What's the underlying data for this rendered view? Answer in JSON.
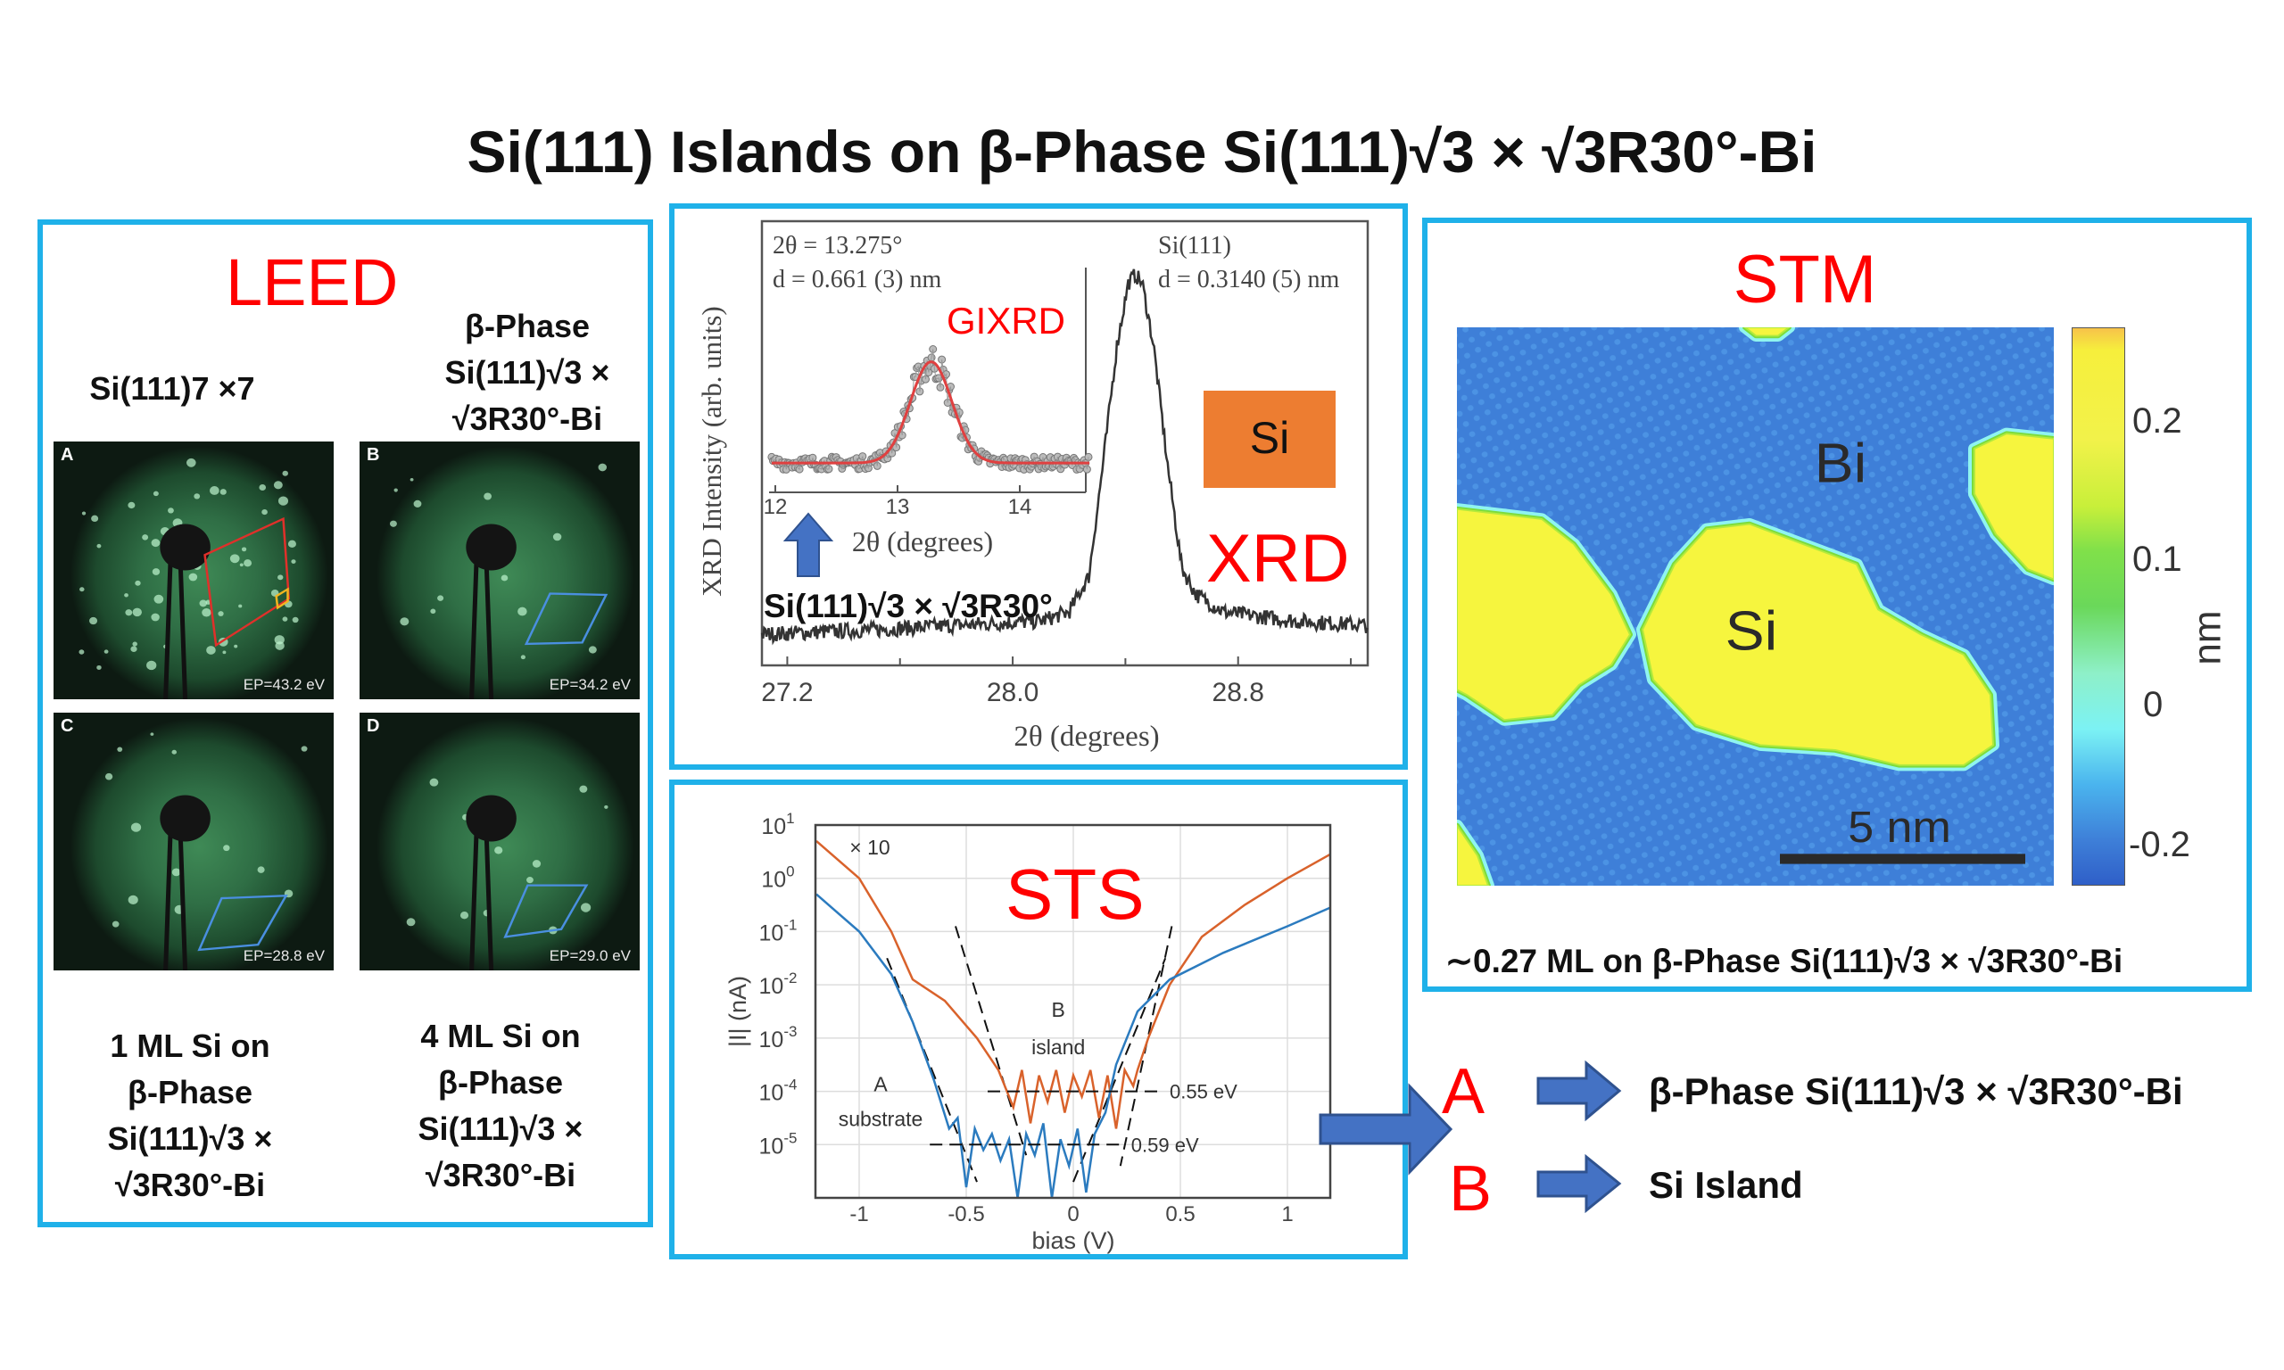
{
  "title": "Si(111) Islands on β-Phase Si(111)√3 × √3R30°-Bi",
  "colors": {
    "panel_border": "#1fb1e9",
    "accent_red": "#ff0000",
    "arrow_blue": "#4472c4",
    "si_box": "#ed7d31"
  },
  "leed": {
    "heading": "LEED",
    "label_a": "Si(111)7 ×7",
    "label_b": [
      "β-Phase",
      "Si(111)√3 ×",
      "√3R30°-Bi"
    ],
    "label_c": [
      "1 ML Si on",
      "β-Phase",
      "Si(111)√3 ×",
      "√3R30°-Bi"
    ],
    "label_d": [
      "4 ML Si on",
      "β-Phase",
      "Si(111)√3 ×",
      "√3R30°-Bi"
    ],
    "images": [
      {
        "letter": "A",
        "energy": "EP=43.2 eV"
      },
      {
        "letter": "B",
        "energy": "EP=34.2 eV"
      },
      {
        "letter": "C",
        "energy": "EP=28.8 eV"
      },
      {
        "letter": "D",
        "energy": "EP=29.0 eV"
      }
    ]
  },
  "xrd": {
    "heading": "XRD",
    "inset_heading": "GIXRD",
    "si_badge": "Si",
    "arrow_label": "Si(111)√3 × √3R30°",
    "inset_ann": [
      "2θ = 13.275°",
      "d = 0.661 (3) nm"
    ],
    "main_ann": [
      "Si(111)",
      "d = 0.3140 (5) nm"
    ]
  },
  "sts": {
    "heading": "STS"
  },
  "stm": {
    "heading": "STM",
    "label_bi": "Bi",
    "label_si": "Si",
    "scale_bar": "5 nm",
    "colorbar_unit": "nm",
    "colorbar_ticks": [
      "0.2",
      "0.1",
      "0",
      "-0.2"
    ],
    "caption": "∼0.27 ML on β-Phase Si(111)√3 × √3R30°-Bi"
  },
  "legend": {
    "a_letter": "A",
    "a_text": "β-Phase Si(111)√3 × √3R30°-Bi",
    "b_letter": "B",
    "b_text": "Si Island"
  },
  "chart_data": [
    {
      "id": "xrd-main",
      "type": "line",
      "xlabel": "2θ (degrees)",
      "ylabel": "XRD Intensity (arb. units)",
      "xlim": [
        27.11,
        29.26
      ],
      "ylim": [
        0,
        1
      ],
      "xticks": [
        "27.2",
        "28.0",
        "28.8"
      ],
      "xtick_values": [
        27.2,
        28.0,
        28.8
      ],
      "x": [
        27.11,
        27.5,
        27.8,
        28.1,
        28.2,
        28.27,
        28.32,
        28.37,
        28.41,
        28.435,
        28.46,
        28.5,
        28.55,
        28.6,
        28.65,
        28.75,
        29.0,
        29.26
      ],
      "y": [
        0.07,
        0.08,
        0.09,
        0.1,
        0.12,
        0.2,
        0.45,
        0.72,
        0.86,
        0.88,
        0.86,
        0.72,
        0.45,
        0.22,
        0.16,
        0.12,
        0.1,
        0.09
      ],
      "peak": {
        "two_theta": 28.435,
        "d_spacing_nm": "0.3140 (5)"
      }
    },
    {
      "id": "xrd-inset",
      "type": "scatter",
      "xlabel": "2θ (degrees)",
      "xlim": [
        11.95,
        14.58
      ],
      "ylim": [
        0,
        1
      ],
      "xticks": [
        "12",
        "13",
        "14"
      ],
      "xtick_values": [
        12,
        13,
        14
      ],
      "fit": {
        "type": "gaussian",
        "center": 13.275,
        "sigma": 0.17,
        "amplitude": 0.39,
        "baseline": 0.113
      },
      "d_spacing_nm": "0.661 (3)"
    },
    {
      "id": "sts",
      "type": "line",
      "xlabel": "bias (V)",
      "ylabel": "|I| (nA)",
      "yscale": "log",
      "xlim": [
        -1.2,
        1.2
      ],
      "ylim_log10": [
        -6,
        1
      ],
      "xticks": [
        "-1",
        "-0.5",
        "0",
        "0.5",
        "1"
      ],
      "xtick_values": [
        -1,
        -0.5,
        0,
        0.5,
        1
      ],
      "yticks": [
        "10^1",
        "10^0",
        "10^-1",
        "10^-2",
        "10^-3",
        "10^-4",
        "10^-5"
      ],
      "ytick_values": [
        1,
        0,
        -1,
        -2,
        -3,
        -4,
        -5
      ],
      "series": [
        {
          "name": "B island",
          "color": "#d9622b",
          "note": "× 10",
          "x": [
            -1.2,
            -1.0,
            -0.85,
            -0.75,
            -0.6,
            -0.45,
            -0.35,
            -0.28,
            -0.24,
            -0.2,
            -0.16,
            -0.12,
            -0.08,
            -0.04,
            0.0,
            0.04,
            0.08,
            0.12,
            0.16,
            0.2,
            0.24,
            0.28,
            0.3,
            0.35,
            0.4,
            0.45,
            0.6,
            0.8,
            1.0,
            1.2
          ],
          "log10_y": [
            0.7,
            0.0,
            -1.0,
            -1.9,
            -2.3,
            -3.0,
            -3.6,
            -4.3,
            -3.6,
            -4.6,
            -3.7,
            -4.2,
            -3.6,
            -4.4,
            -3.7,
            -4.1,
            -3.6,
            -4.5,
            -3.7,
            -4.7,
            -3.6,
            -3.9,
            -3.6,
            -3.0,
            -2.5,
            -2.0,
            -1.1,
            -0.5,
            0.0,
            0.45
          ]
        },
        {
          "name": "A substrate",
          "color": "#2b7bbf",
          "x": [
            -1.2,
            -1.0,
            -0.85,
            -0.75,
            -0.65,
            -0.58,
            -0.54,
            -0.5,
            -0.46,
            -0.42,
            -0.38,
            -0.34,
            -0.3,
            -0.26,
            -0.22,
            -0.18,
            -0.14,
            -0.1,
            -0.06,
            -0.02,
            0.02,
            0.06,
            0.1,
            0.15,
            0.2,
            0.3,
            0.45,
            0.7,
            1.0,
            1.2
          ],
          "log10_y": [
            -0.3,
            -1.0,
            -1.8,
            -2.7,
            -3.8,
            -4.7,
            -4.5,
            -5.8,
            -4.7,
            -5.1,
            -4.8,
            -5.3,
            -4.9,
            -6.0,
            -4.8,
            -5.2,
            -4.6,
            -6.0,
            -4.9,
            -5.4,
            -4.7,
            -5.9,
            -4.8,
            -4.4,
            -3.5,
            -2.5,
            -1.9,
            -1.4,
            -0.9,
            -0.55
          ]
        }
      ],
      "gap_lines": [
        {
          "label": "0.55 eV",
          "log10_y": -4,
          "x": [
            -0.4,
            0.4
          ]
        },
        {
          "label": "0.59 eV",
          "log10_y": -5,
          "x": [
            -0.67,
            0.22
          ]
        }
      ],
      "tangents": [
        {
          "x": [
            -0.55,
            -0.22
          ],
          "log10_y": [
            -0.9,
            -5.2
          ]
        },
        {
          "x": [
            0.46,
            0.22
          ],
          "log10_y": [
            -0.9,
            -5.4
          ]
        },
        {
          "x": [
            -0.87,
            -0.45
          ],
          "log10_y": [
            -1.5,
            -5.7
          ]
        },
        {
          "x": [
            0.0,
            0.43
          ],
          "log10_y": [
            -5.7,
            -1.5
          ]
        }
      ],
      "annotations": [
        {
          "text": "× 10",
          "x": -0.95,
          "log10_y": 0.45
        },
        {
          "text": "B",
          "x": -0.07,
          "log10_y": -2.6
        },
        {
          "text": "island",
          "x": -0.07,
          "log10_y": -3.3
        },
        {
          "text": "A",
          "x": -0.9,
          "log10_y": -4.0
        },
        {
          "text": "substrate",
          "x": -0.9,
          "log10_y": -4.65
        }
      ]
    },
    {
      "id": "stm-colorbar",
      "type": "heatmap",
      "unit": "nm",
      "range": [
        -0.25,
        0.25
      ],
      "ticks": [
        0.2,
        0.1,
        0,
        -0.2
      ]
    }
  ]
}
